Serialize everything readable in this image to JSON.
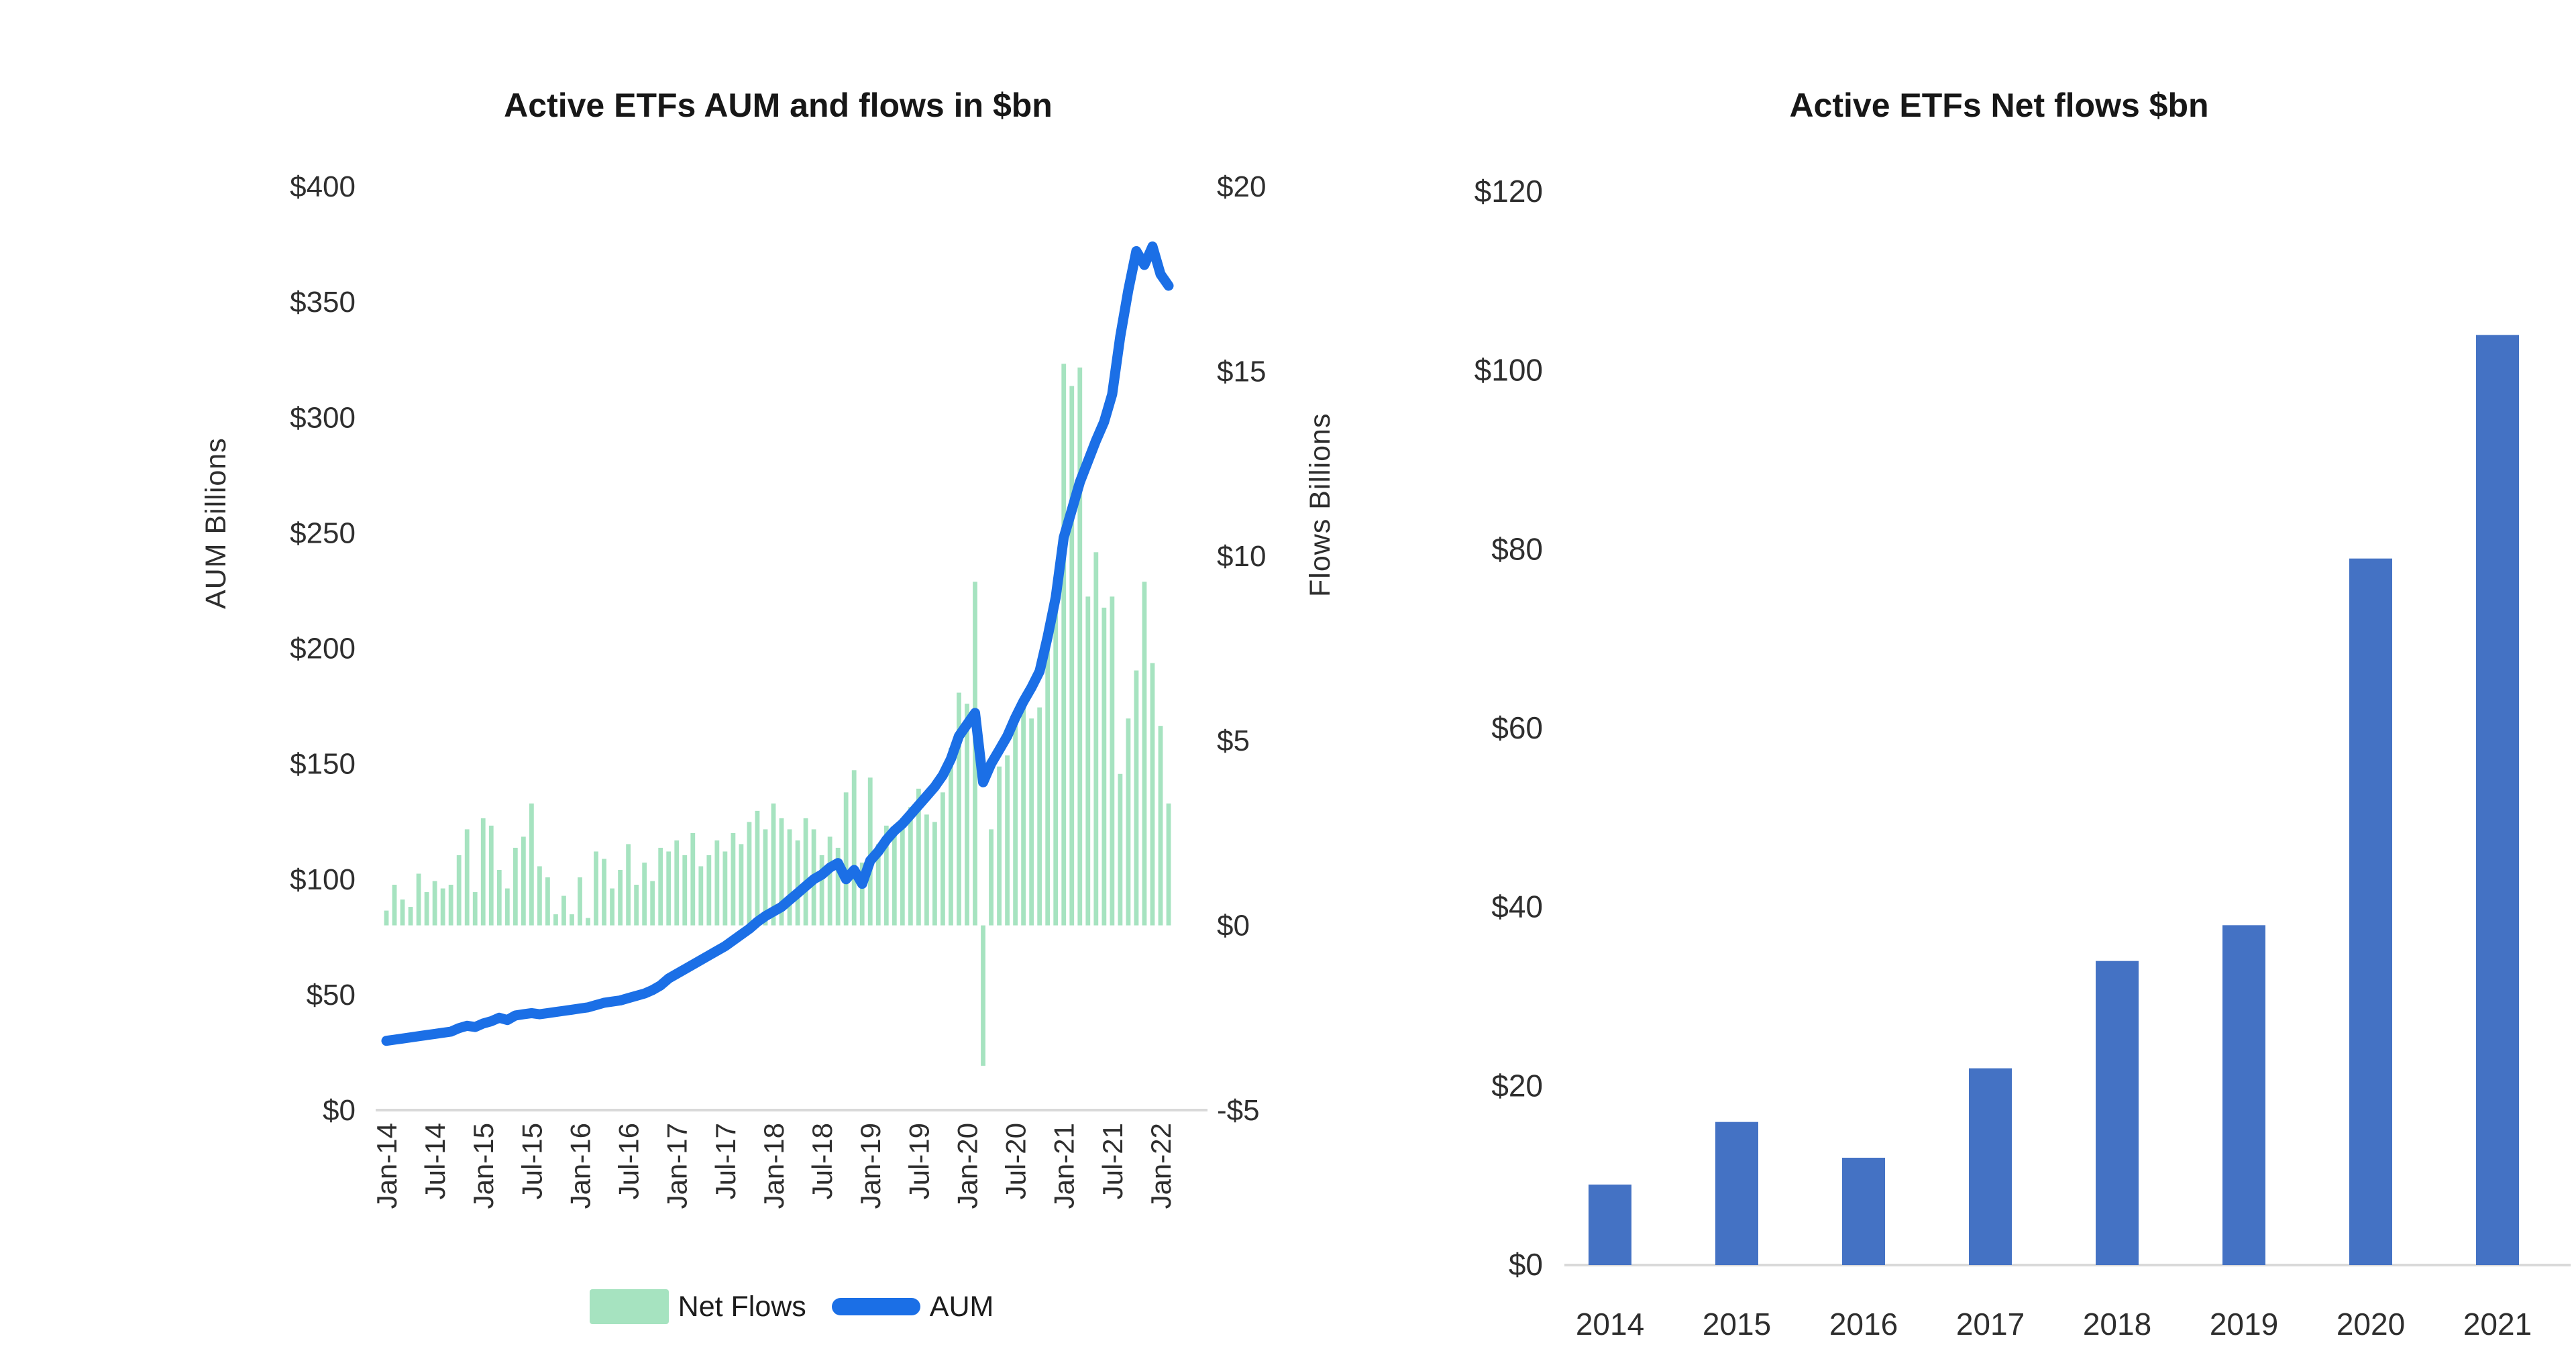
{
  "page": {
    "background": "#ffffff"
  },
  "colors": {
    "net_flows_green": "#a6e3c0",
    "aum_line_blue": "#1b6fe6",
    "annual_bar_blue": "#4472c4",
    "axis_line_gray": "#d9d9d9",
    "text_dark": "#2e2e2e"
  },
  "chart_data": [
    {
      "type": "bar+line dual-axis",
      "title": "Active ETFs AUM and flows in $bn",
      "y_left": {
        "label": "AUM Billions",
        "range": [
          0,
          400
        ],
        "tick_labels": [
          "$400",
          "$350",
          "$300",
          "$250",
          "$200",
          "$150",
          "$100",
          "$50",
          "$0"
        ],
        "tick_values": [
          400,
          350,
          300,
          250,
          200,
          150,
          100,
          50,
          0
        ]
      },
      "y_right": {
        "label": "Flows Billions",
        "range": [
          -5,
          20
        ],
        "tick_labels": [
          "$20",
          "$15",
          "$10",
          "$5",
          "$0",
          "-$5"
        ],
        "tick_values": [
          20,
          15,
          10,
          5,
          0,
          -5
        ]
      },
      "x": {
        "freq": "monthly",
        "start": "Jan-14",
        "end": "Feb-22",
        "tick_labels": [
          "Jan-14",
          "Jul-14",
          "Jan-15",
          "Jul-15",
          "Jan-16",
          "Jul-16",
          "Jan-17",
          "Jul-17",
          "Jan-18",
          "Jul-18",
          "Jan-19",
          "Jul-19",
          "Jan-20",
          "Jul-20",
          "Jan-21",
          "Jul-21",
          "Jan-22"
        ],
        "tick_month_indices": [
          0,
          6,
          12,
          18,
          24,
          30,
          36,
          42,
          48,
          54,
          60,
          66,
          72,
          78,
          84,
          90,
          96
        ]
      },
      "series": [
        {
          "name": "Net Flows",
          "type": "bar",
          "axis": "right",
          "color": "#a6e3c0",
          "values": [
            0.4,
            1.1,
            0.7,
            0.5,
            1.4,
            0.9,
            1.2,
            1.0,
            1.1,
            1.9,
            2.6,
            0.9,
            2.9,
            2.7,
            1.5,
            1.0,
            2.1,
            2.4,
            3.3,
            1.6,
            1.3,
            0.3,
            0.8,
            0.3,
            1.3,
            0.2,
            2.0,
            1.8,
            1.0,
            1.5,
            2.2,
            1.1,
            1.7,
            1.2,
            2.1,
            2.0,
            2.3,
            1.9,
            2.5,
            1.6,
            1.9,
            2.3,
            2.0,
            2.5,
            2.2,
            2.8,
            3.1,
            2.6,
            3.3,
            2.9,
            2.6,
            2.3,
            2.9,
            2.6,
            1.9,
            2.4,
            2.1,
            3.6,
            4.2,
            1.7,
            4.0,
            2.2,
            2.7,
            2.6,
            2.9,
            3.2,
            3.7,
            3.0,
            2.8,
            3.6,
            4.8,
            6.3,
            6.0,
            9.3,
            -3.8,
            2.6,
            4.3,
            4.6,
            5.4,
            6.1,
            5.6,
            5.9,
            8.1,
            8.6,
            15.2,
            14.6,
            15.1,
            8.9,
            10.1,
            8.6,
            8.9,
            4.1,
            5.6,
            6.9,
            9.3,
            7.1,
            5.4,
            3.3
          ]
        },
        {
          "name": "AUM",
          "type": "line",
          "axis": "left",
          "color": "#1b6fe6",
          "values": [
            30,
            30.5,
            31,
            31.5,
            32,
            32.5,
            33,
            33.5,
            34,
            35.5,
            36.5,
            36,
            37.5,
            38.5,
            40,
            39,
            41,
            41.5,
            42,
            41.5,
            42,
            42.5,
            43,
            43.5,
            44,
            44.5,
            45.5,
            46.5,
            47,
            47.5,
            48.5,
            49.5,
            50.5,
            52,
            54,
            57,
            59,
            61,
            63,
            65,
            67,
            69,
            71,
            73.5,
            76,
            78.5,
            81.5,
            84,
            86,
            88,
            91,
            94,
            97,
            100,
            102,
            105,
            107,
            100,
            104,
            98,
            108,
            112,
            117,
            121,
            124,
            128,
            132,
            136,
            140,
            145,
            152,
            162,
            167,
            172,
            142,
            150,
            156,
            162,
            170,
            177,
            183,
            190,
            205,
            222,
            248,
            260,
            272,
            281,
            290,
            298,
            310,
            335,
            355,
            372,
            366,
            374,
            362,
            357
          ]
        }
      ],
      "legend": {
        "position": "bottom",
        "items": [
          "Net Flows",
          "AUM"
        ]
      }
    },
    {
      "type": "bar",
      "title": "Active ETFs Net flows $bn",
      "categories": [
        "2014",
        "2015",
        "2016",
        "2017",
        "2018",
        "2019",
        "2020",
        "2021"
      ],
      "values": [
        9,
        16,
        12,
        22,
        34,
        38,
        79,
        104
      ],
      "bar_color": "#4472c4",
      "ylim": [
        0,
        120
      ],
      "y_tick_labels": [
        "$120",
        "$100",
        "$80",
        "$60",
        "$40",
        "$20",
        "$0"
      ],
      "y_tick_values": [
        120,
        100,
        80,
        60,
        40,
        20,
        0
      ],
      "grid": false,
      "legend_position": "none"
    }
  ]
}
